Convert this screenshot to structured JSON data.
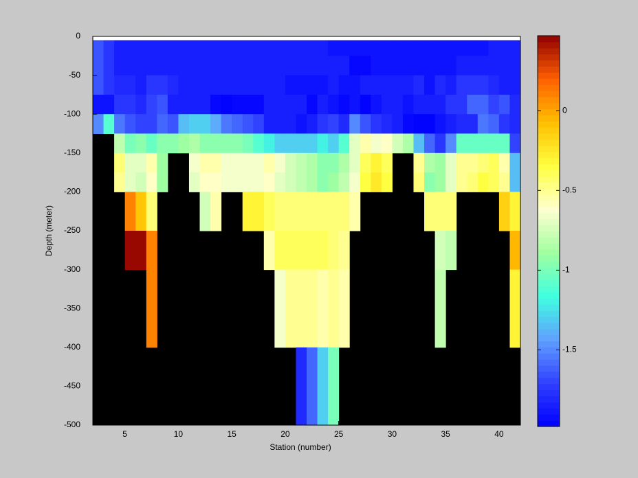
{
  "chart_data": {
    "type": "heatmap",
    "xlabel": "Station (number)",
    "ylabel": "Depth (meter)",
    "xlim": [
      2,
      42
    ],
    "ylim": [
      -500,
      0
    ],
    "xticks": [
      5,
      10,
      15,
      20,
      25,
      30,
      35,
      40
    ],
    "yticks": [
      0,
      -50,
      -100,
      -150,
      -200,
      -250,
      -300,
      -350,
      -400,
      -450,
      -500
    ],
    "xedges": [
      2,
      3,
      4,
      5,
      6,
      7,
      8,
      9,
      10,
      11,
      12,
      13,
      14,
      15,
      16,
      17,
      18,
      19,
      20,
      21,
      22,
      23,
      24,
      25,
      26,
      27,
      28,
      29,
      30,
      31,
      32,
      33,
      34,
      35,
      36,
      37,
      38,
      39,
      40,
      41,
      42
    ],
    "yedges": [
      -5,
      -25,
      -50,
      -75,
      -100,
      -125,
      -150,
      -175,
      -200,
      -250,
      -300,
      -400,
      -500
    ],
    "missing_color": "#000000",
    "clim": [
      -1.98,
      0.47
    ],
    "cticks": [
      0,
      -0.5,
      -1,
      -1.5
    ],
    "colormap": [
      "#0000ff",
      "#3040ff",
      "#60a0ff",
      "#40ffe0",
      "#a0ffa0",
      "#ffffd0",
      "#ffff40",
      "#ffc000",
      "#ff6000",
      "#900000"
    ],
    "z": [
      [
        -1.65,
        -1.75,
        -1.85,
        -1.85,
        -1.85,
        -1.85,
        -1.85,
        -1.85,
        -1.85,
        -1.85,
        -1.85,
        -1.85,
        -1.85,
        -1.85,
        -1.85,
        -1.85,
        -1.85,
        -1.85,
        -1.85,
        -1.85,
        -1.85,
        -1.85,
        -1.9,
        -1.9,
        -1.9,
        -1.9,
        -1.9,
        -1.9,
        -1.9,
        -1.9,
        -1.9,
        -1.9,
        -1.9,
        -1.9,
        -1.9,
        -1.9,
        -1.9,
        -1.85,
        -1.85,
        -1.85
      ],
      [
        -1.65,
        -1.75,
        -1.85,
        -1.85,
        -1.85,
        -1.85,
        -1.85,
        -1.85,
        -1.85,
        -1.85,
        -1.85,
        -1.85,
        -1.85,
        -1.85,
        -1.85,
        -1.85,
        -1.85,
        -1.85,
        -1.85,
        -1.85,
        -1.85,
        -1.85,
        -1.85,
        -1.85,
        -1.95,
        -1.95,
        -1.9,
        -1.9,
        -1.9,
        -1.9,
        -1.9,
        -1.9,
        -1.9,
        -1.9,
        -1.85,
        -1.85,
        -1.85,
        -1.85,
        -1.85,
        -1.85
      ],
      [
        -1.65,
        -1.75,
        -1.8,
        -1.8,
        -1.85,
        -1.75,
        -1.75,
        -1.8,
        -1.85,
        -1.85,
        -1.85,
        -1.85,
        -1.85,
        -1.85,
        -1.85,
        -1.85,
        -1.85,
        -1.85,
        -1.9,
        -1.9,
        -1.9,
        -1.9,
        -1.85,
        -1.9,
        -1.9,
        -1.85,
        -1.85,
        -1.85,
        -1.85,
        -1.85,
        -1.8,
        -1.9,
        -1.8,
        -1.85,
        -1.75,
        -1.75,
        -1.75,
        -1.8,
        -1.85,
        -1.85
      ],
      [
        -1.9,
        -1.9,
        -1.75,
        -1.75,
        -1.8,
        -1.7,
        -1.65,
        -1.85,
        -1.85,
        -1.85,
        -1.85,
        -1.95,
        -1.97,
        -1.95,
        -1.95,
        -1.95,
        -1.85,
        -1.85,
        -1.85,
        -1.85,
        -1.95,
        -1.85,
        -1.9,
        -1.95,
        -1.9,
        -1.97,
        -1.9,
        -1.85,
        -1.85,
        -1.9,
        -1.85,
        -1.85,
        -1.85,
        -1.75,
        -1.75,
        -1.6,
        -1.6,
        -1.7,
        -1.65,
        -1.8
      ],
      [
        -1.5,
        -1.1,
        -1.55,
        -1.65,
        -1.7,
        -1.7,
        -1.6,
        -1.65,
        -1.35,
        -1.3,
        -1.3,
        -1.4,
        -1.55,
        -1.6,
        -1.65,
        -1.7,
        -1.85,
        -1.85,
        -1.85,
        -1.9,
        -1.85,
        -1.75,
        -1.7,
        -1.8,
        -1.5,
        -1.65,
        -1.75,
        -1.8,
        -1.85,
        -1.95,
        -1.97,
        -1.97,
        -1.9,
        -1.85,
        -1.8,
        -1.8,
        -1.55,
        -1.6,
        -1.75,
        -1.8
      ],
      [
        null,
        null,
        -0.8,
        -1.0,
        -0.95,
        -1.05,
        -0.95,
        -0.95,
        -0.9,
        -0.85,
        -0.95,
        -0.95,
        -0.95,
        -0.95,
        -1.0,
        -1.1,
        -1.2,
        -1.3,
        -1.3,
        -1.3,
        -1.3,
        -1.2,
        -1.3,
        -1.1,
        -0.7,
        -0.55,
        -0.65,
        -0.6,
        -0.75,
        -0.85,
        -1.35,
        -1.6,
        -1.75,
        -1.5,
        -1.05,
        -1.05,
        -1.05,
        -1.05,
        -1.05,
        -1.7
      ],
      [
        null,
        null,
        -0.45,
        -0.7,
        -0.7,
        -0.55,
        -0.9,
        null,
        null,
        -0.65,
        -0.55,
        -0.55,
        -0.65,
        -0.65,
        -0.65,
        -0.65,
        -0.55,
        -0.65,
        -0.75,
        -0.8,
        -0.85,
        -0.95,
        -0.95,
        -0.85,
        -0.7,
        -0.4,
        -0.3,
        -0.4,
        null,
        null,
        -0.5,
        -0.85,
        -0.9,
        -0.7,
        -0.5,
        -0.5,
        -0.45,
        -0.4,
        -0.55,
        -1.35
      ],
      [
        null,
        null,
        -0.5,
        -0.7,
        -0.75,
        -0.6,
        -0.9,
        null,
        null,
        -0.7,
        -0.6,
        -0.6,
        -0.65,
        -0.65,
        -0.65,
        -0.65,
        -0.6,
        -0.7,
        -0.75,
        -0.8,
        -0.85,
        -0.95,
        -0.9,
        -0.8,
        -0.65,
        -0.35,
        -0.25,
        -0.35,
        null,
        null,
        -0.45,
        -0.95,
        -0.9,
        -0.7,
        -0.5,
        -0.45,
        -0.35,
        -0.4,
        -0.5,
        -1.35
      ],
      [
        null,
        null,
        null,
        0.1,
        -0.1,
        -0.45,
        null,
        null,
        null,
        null,
        -0.75,
        -0.55,
        null,
        null,
        -0.3,
        -0.3,
        -0.4,
        -0.45,
        -0.45,
        -0.45,
        -0.45,
        -0.45,
        -0.45,
        -0.45,
        -0.55,
        null,
        null,
        null,
        null,
        null,
        null,
        -0.45,
        -0.45,
        -0.45,
        null,
        null,
        null,
        null,
        -0.15,
        -0.3
      ],
      [
        null,
        null,
        null,
        0.45,
        0.45,
        0.1,
        null,
        null,
        null,
        null,
        null,
        null,
        null,
        null,
        null,
        null,
        -0.55,
        -0.4,
        -0.4,
        -0.4,
        -0.4,
        -0.4,
        -0.45,
        -0.5,
        null,
        null,
        null,
        null,
        null,
        null,
        null,
        null,
        -0.75,
        -0.8,
        null,
        null,
        null,
        null,
        null,
        -0.05
      ],
      [
        null,
        null,
        null,
        null,
        null,
        0.1,
        null,
        null,
        null,
        null,
        null,
        null,
        null,
        null,
        null,
        null,
        null,
        -0.65,
        -0.5,
        -0.5,
        -0.5,
        -0.55,
        -0.5,
        -0.55,
        null,
        null,
        null,
        null,
        null,
        null,
        null,
        null,
        -0.8,
        null,
        null,
        null,
        null,
        null,
        null,
        -0.3
      ],
      [
        null,
        null,
        null,
        null,
        null,
        null,
        null,
        null,
        null,
        null,
        null,
        null,
        null,
        null,
        null,
        null,
        null,
        null,
        null,
        -1.8,
        -1.6,
        -1.3,
        -1.0,
        null,
        null,
        null,
        null,
        null,
        null,
        null,
        null,
        null,
        null,
        null,
        null,
        null,
        null,
        null,
        null,
        null
      ]
    ]
  }
}
